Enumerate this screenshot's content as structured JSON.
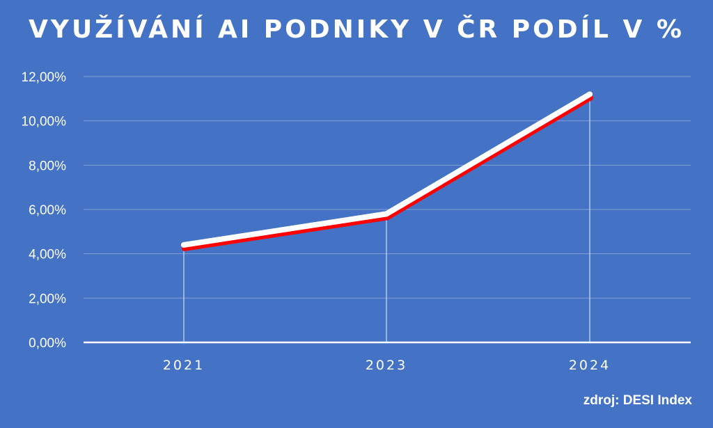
{
  "chart_data": {
    "type": "line",
    "title": "VYUŽÍVÁNÍ AI PODNIKY V ČR PODÍL V %",
    "categories": [
      "2021",
      "2023",
      "2024"
    ],
    "series": [
      {
        "values": [
          4.4,
          5.8,
          11.2
        ]
      }
    ],
    "y_ticks": [
      "0,00%",
      "2,00%",
      "4,00%",
      "6,00%",
      "8,00%",
      "10,00%",
      "12,00%"
    ],
    "ylim": [
      0,
      12
    ],
    "grid": true,
    "source": "zdroj: DESI Index",
    "colors": {
      "background": "#4472c4",
      "line": "#ffffff",
      "line_shadow": "#ff0000",
      "grid": "#7f9fd8",
      "axis": "#ffffff"
    }
  }
}
